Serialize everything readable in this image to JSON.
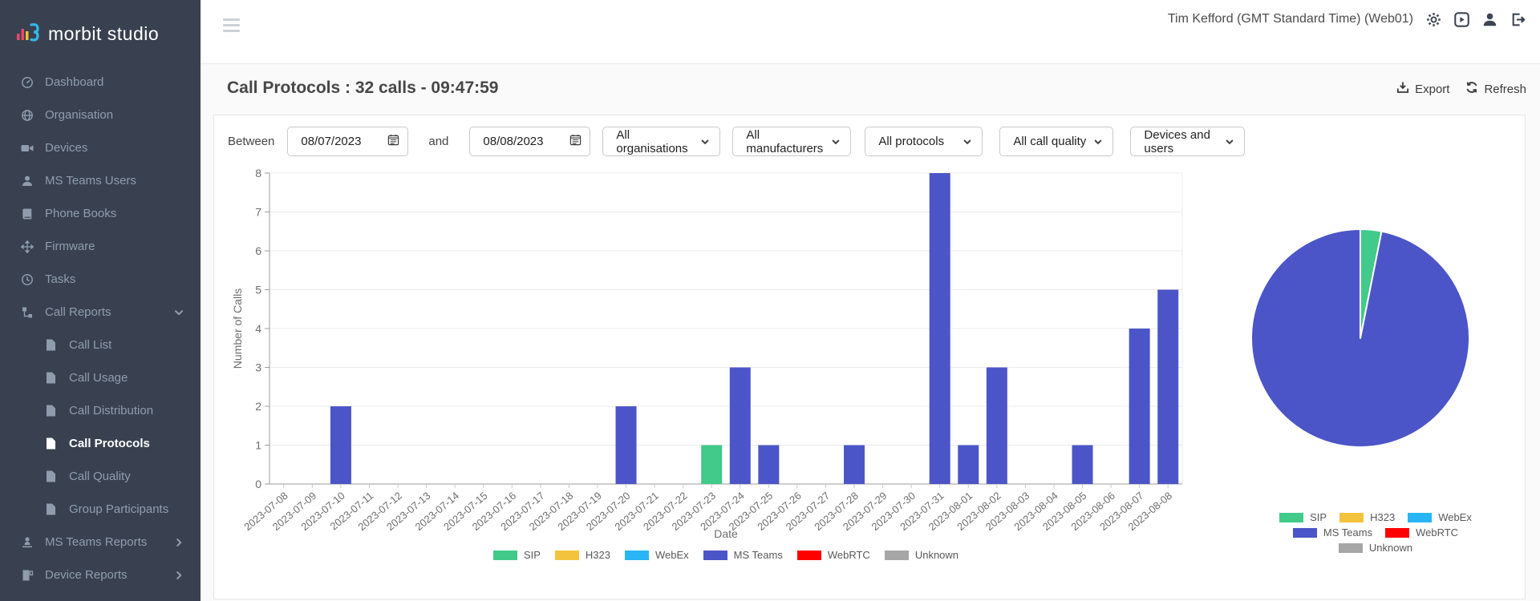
{
  "brand": {
    "name": "morbit studio",
    "icon": "brand-bars-icon"
  },
  "sidebar": {
    "items": [
      {
        "label": "Dashboard",
        "icon": "dashboard-icon"
      },
      {
        "label": "Organisation",
        "icon": "globe-icon"
      },
      {
        "label": "Devices",
        "icon": "video-camera-icon"
      },
      {
        "label": "MS Teams Users",
        "icon": "user-icon"
      },
      {
        "label": "Phone Books",
        "icon": "book-icon"
      },
      {
        "label": "Firmware",
        "icon": "firmware-arrows-icon"
      },
      {
        "label": "Tasks",
        "icon": "clock-icon"
      },
      {
        "label": "Call Reports",
        "icon": "sitemap-icon",
        "expanded": true,
        "children": [
          "Call List",
          "Call Usage",
          "Call Distribution",
          "Call Protocols",
          "Call Quality",
          "Group Participants"
        ],
        "active_child": "Call Protocols"
      },
      {
        "label": "MS Teams Reports",
        "icon": "user-report-icon",
        "collapsed": true
      },
      {
        "label": "Device Reports",
        "icon": "device-report-icon",
        "collapsed": true
      }
    ]
  },
  "topbar": {
    "user": "Tim Kefford (GMT Standard Time) (Web01)"
  },
  "page": {
    "title": "Call Protocols : 32 calls - 09:47:59",
    "export_label": "Export",
    "refresh_label": "Refresh"
  },
  "filters": {
    "between_label": "Between",
    "and_label": "and",
    "start_date": "08/07/2023",
    "end_date": "08/08/2023",
    "selects": [
      "All organisations",
      "All manufacturers",
      "All protocols",
      "All call quality",
      "Devices and users"
    ]
  },
  "chart_data": [
    {
      "type": "bar",
      "title": "",
      "xlabel": "Date",
      "ylabel": "Number of Calls",
      "ylim": [
        0,
        8
      ],
      "y_ticks": [
        0,
        1,
        2,
        3,
        4,
        5,
        6,
        7,
        8
      ],
      "grid": true,
      "legend_position": "bottom",
      "categories": [
        "2023-07-08",
        "2023-07-09",
        "2023-07-10",
        "2023-07-11",
        "2023-07-12",
        "2023-07-13",
        "2023-07-14",
        "2023-07-15",
        "2023-07-16",
        "2023-07-17",
        "2023-07-18",
        "2023-07-19",
        "2023-07-20",
        "2023-07-21",
        "2023-07-22",
        "2023-07-23",
        "2023-07-24",
        "2023-07-25",
        "2023-07-26",
        "2023-07-27",
        "2023-07-28",
        "2023-07-29",
        "2023-07-30",
        "2023-07-31",
        "2023-08-01",
        "2023-08-02",
        "2023-08-03",
        "2023-08-04",
        "2023-08-05",
        "2023-08-06",
        "2023-08-07",
        "2023-08-08"
      ],
      "series": [
        {
          "name": "SIP",
          "color": "#41ca8a",
          "values": [
            0,
            0,
            0,
            0,
            0,
            0,
            0,
            0,
            0,
            0,
            0,
            0,
            0,
            0,
            0,
            1,
            0,
            0,
            0,
            0,
            0,
            0,
            0,
            0,
            0,
            0,
            0,
            0,
            0,
            0,
            0,
            0
          ]
        },
        {
          "name": "H323",
          "color": "#f4c33d",
          "values": [
            0,
            0,
            0,
            0,
            0,
            0,
            0,
            0,
            0,
            0,
            0,
            0,
            0,
            0,
            0,
            0,
            0,
            0,
            0,
            0,
            0,
            0,
            0,
            0,
            0,
            0,
            0,
            0,
            0,
            0,
            0,
            0
          ]
        },
        {
          "name": "WebEx",
          "color": "#28b5f5",
          "values": [
            0,
            0,
            0,
            0,
            0,
            0,
            0,
            0,
            0,
            0,
            0,
            0,
            0,
            0,
            0,
            0,
            0,
            0,
            0,
            0,
            0,
            0,
            0,
            0,
            0,
            0,
            0,
            0,
            0,
            0,
            0,
            0
          ]
        },
        {
          "name": "MS Teams",
          "color": "#4c55c7",
          "values": [
            0,
            0,
            2,
            0,
            0,
            0,
            0,
            0,
            0,
            0,
            0,
            0,
            2,
            0,
            0,
            0,
            3,
            1,
            0,
            0,
            1,
            0,
            0,
            8,
            1,
            3,
            0,
            0,
            1,
            0,
            4,
            5
          ]
        },
        {
          "name": "WebRTC",
          "color": "#fd0000",
          "values": [
            0,
            0,
            0,
            0,
            0,
            0,
            0,
            0,
            0,
            0,
            0,
            0,
            0,
            0,
            0,
            0,
            0,
            0,
            0,
            0,
            0,
            0,
            0,
            0,
            0,
            0,
            0,
            0,
            0,
            0,
            0,
            0
          ]
        },
        {
          "name": "Unknown",
          "color": "#a6a6a6",
          "values": [
            0,
            0,
            0,
            0,
            0,
            0,
            0,
            0,
            0,
            0,
            0,
            0,
            0,
            0,
            0,
            0,
            0,
            0,
            0,
            0,
            0,
            0,
            0,
            0,
            0,
            0,
            0,
            0,
            0,
            0,
            0,
            0
          ]
        }
      ]
    },
    {
      "type": "pie",
      "labels": [
        "SIP",
        "H323",
        "WebEx",
        "MS Teams",
        "WebRTC",
        "Unknown"
      ],
      "colors": [
        "#41ca8a",
        "#f4c33d",
        "#28b5f5",
        "#4c55c7",
        "#fd0000",
        "#a6a6a6"
      ],
      "values": [
        1,
        0,
        0,
        31,
        0,
        0
      ],
      "legend_position": "bottom"
    }
  ]
}
